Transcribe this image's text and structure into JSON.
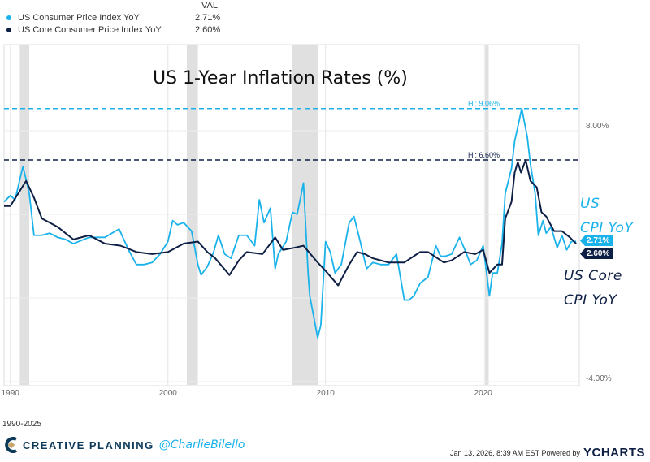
{
  "legend": {
    "header": "VAL",
    "items": [
      {
        "name": "US Consumer Price Index YoY",
        "value": "2.71%",
        "color": "#1ab2ea"
      },
      {
        "name": "US Core Consumer Price Index YoY",
        "value": "2.60%",
        "color": "#0e1f45"
      }
    ]
  },
  "chart_data": {
    "type": "line",
    "title": "US 1-Year Inflation Rates (%)",
    "xlim": [
      1989.6,
      2026.1
    ],
    "ylim": [
      -4,
      10.5
    ],
    "x_ticks": [
      "1990",
      "2000",
      "2010",
      "2020"
    ],
    "y_ticks": [
      "8.00%",
      "-4.00%"
    ],
    "grid": true,
    "recessions": [
      [
        1990.6,
        1991.2
      ],
      [
        2001.2,
        2001.9
      ],
      [
        2007.9,
        2009.5
      ],
      [
        2020.1,
        2020.35
      ]
    ],
    "annotations": [
      {
        "label": "Hi: 9.06%",
        "value": 9.06,
        "color": "#1ab2ea"
      },
      {
        "label": "Hi: 6.60%",
        "value": 6.6,
        "color": "#0e1f45"
      }
    ],
    "end_labels": [
      "2.71%",
      "2.60%"
    ],
    "series": [
      {
        "name": "US Consumer Price Index YoY",
        "callout": [
          "US",
          "CPI YoY"
        ],
        "color": "#1ab2ea",
        "points": [
          [
            1989.6,
            4.6
          ],
          [
            1990,
            4.9
          ],
          [
            1990.3,
            4.7
          ],
          [
            1990.8,
            6.3
          ],
          [
            1991.2,
            5.0
          ],
          [
            1991.5,
            3.0
          ],
          [
            1992,
            3.0
          ],
          [
            1992.5,
            3.1
          ],
          [
            1993,
            2.9
          ],
          [
            1993.5,
            2.8
          ],
          [
            1994,
            2.6
          ],
          [
            1995,
            2.9
          ],
          [
            1996,
            2.9
          ],
          [
            1996.9,
            3.3
          ],
          [
            1997.5,
            2.3
          ],
          [
            1998,
            1.6
          ],
          [
            1998.5,
            1.6
          ],
          [
            1999,
            1.7
          ],
          [
            1999.5,
            2.1
          ],
          [
            2000,
            2.7
          ],
          [
            2000.3,
            3.7
          ],
          [
            2000.6,
            3.5
          ],
          [
            2001,
            3.6
          ],
          [
            2001.5,
            3.2
          ],
          [
            2001.9,
            1.6
          ],
          [
            2002.1,
            1.1
          ],
          [
            2002.5,
            1.5
          ],
          [
            2002.9,
            2.2
          ],
          [
            2003.2,
            3.0
          ],
          [
            2003.6,
            2.1
          ],
          [
            2004,
            1.9
          ],
          [
            2004.5,
            3.0
          ],
          [
            2005,
            3.0
          ],
          [
            2005.5,
            2.5
          ],
          [
            2005.8,
            4.7
          ],
          [
            2006.1,
            3.6
          ],
          [
            2006.5,
            4.3
          ],
          [
            2006.8,
            1.4
          ],
          [
            2007,
            2.1
          ],
          [
            2007.5,
            2.7
          ],
          [
            2007.9,
            4.1
          ],
          [
            2008.2,
            4.0
          ],
          [
            2008.6,
            5.5
          ],
          [
            2008.9,
            1.1
          ],
          [
            2009,
            0.1
          ],
          [
            2009.5,
            -1.9
          ],
          [
            2009.7,
            -1.3
          ],
          [
            2010,
            2.7
          ],
          [
            2010.3,
            2.2
          ],
          [
            2010.6,
            1.2
          ],
          [
            2011,
            1.6
          ],
          [
            2011.5,
            3.6
          ],
          [
            2011.8,
            3.9
          ],
          [
            2012.2,
            2.7
          ],
          [
            2012.6,
            1.4
          ],
          [
            2013,
            1.7
          ],
          [
            2013.5,
            1.6
          ],
          [
            2014,
            1.6
          ],
          [
            2014.5,
            2.1
          ],
          [
            2015,
            -0.1
          ],
          [
            2015.3,
            -0.1
          ],
          [
            2015.6,
            0.1
          ],
          [
            2016,
            0.7
          ],
          [
            2016.5,
            1.0
          ],
          [
            2017,
            2.5
          ],
          [
            2017.3,
            2.0
          ],
          [
            2017.6,
            2.0
          ],
          [
            2018,
            2.1
          ],
          [
            2018.5,
            2.9
          ],
          [
            2018.9,
            2.2
          ],
          [
            2019.2,
            1.6
          ],
          [
            2019.6,
            1.8
          ],
          [
            2020,
            2.5
          ],
          [
            2020.4,
            0.1
          ],
          [
            2020.6,
            1.2
          ],
          [
            2020.9,
            1.2
          ],
          [
            2021.2,
            2.6
          ],
          [
            2021.4,
            5.0
          ],
          [
            2021.8,
            6.2
          ],
          [
            2022,
            7.5
          ],
          [
            2022.45,
            9.06
          ],
          [
            2022.8,
            7.7
          ],
          [
            2023,
            6.4
          ],
          [
            2023.3,
            5.0
          ],
          [
            2023.5,
            3.0
          ],
          [
            2023.8,
            3.7
          ],
          [
            2024,
            3.1
          ],
          [
            2024.3,
            3.4
          ],
          [
            2024.7,
            2.4
          ],
          [
            2025,
            3.0
          ],
          [
            2025.3,
            2.3
          ],
          [
            2025.6,
            2.7
          ],
          [
            2025.9,
            2.71
          ]
        ]
      },
      {
        "name": "US Core Consumer Price Index YoY",
        "callout": [
          "US Core",
          "CPI YoY"
        ],
        "color": "#0e1f45",
        "points": [
          [
            1989.6,
            4.4
          ],
          [
            1990,
            4.4
          ],
          [
            1990.5,
            5.0
          ],
          [
            1991,
            5.6
          ],
          [
            1991.5,
            4.8
          ],
          [
            1992,
            3.8
          ],
          [
            1992.5,
            3.6
          ],
          [
            1993,
            3.4
          ],
          [
            1994,
            2.8
          ],
          [
            1995,
            3.0
          ],
          [
            1996,
            2.6
          ],
          [
            1997,
            2.5
          ],
          [
            1998,
            2.2
          ],
          [
            1999,
            2.1
          ],
          [
            2000,
            2.2
          ],
          [
            2001,
            2.6
          ],
          [
            2001.9,
            2.7
          ],
          [
            2002.5,
            2.2
          ],
          [
            2003,
            1.9
          ],
          [
            2003.9,
            1.1
          ],
          [
            2004.5,
            1.8
          ],
          [
            2005,
            2.2
          ],
          [
            2006,
            2.1
          ],
          [
            2006.8,
            2.9
          ],
          [
            2007.3,
            2.3
          ],
          [
            2008,
            2.4
          ],
          [
            2008.6,
            2.5
          ],
          [
            2009.5,
            1.7
          ],
          [
            2010,
            1.3
          ],
          [
            2010.8,
            0.6
          ],
          [
            2011.5,
            1.6
          ],
          [
            2012,
            2.2
          ],
          [
            2012.5,
            2.1
          ],
          [
            2013,
            1.9
          ],
          [
            2014,
            1.7
          ],
          [
            2015,
            1.7
          ],
          [
            2016,
            2.2
          ],
          [
            2016.5,
            2.2
          ],
          [
            2017.5,
            1.7
          ],
          [
            2018,
            1.8
          ],
          [
            2018.8,
            2.2
          ],
          [
            2019.5,
            2.1
          ],
          [
            2020,
            2.3
          ],
          [
            2020.4,
            1.2
          ],
          [
            2020.9,
            1.6
          ],
          [
            2021.2,
            1.6
          ],
          [
            2021.4,
            3.8
          ],
          [
            2021.8,
            4.6
          ],
          [
            2022,
            6.0
          ],
          [
            2022.2,
            6.5
          ],
          [
            2022.4,
            6.0
          ],
          [
            2022.7,
            6.6
          ],
          [
            2023,
            5.6
          ],
          [
            2023.4,
            5.3
          ],
          [
            2023.7,
            4.1
          ],
          [
            2024,
            3.9
          ],
          [
            2024.5,
            3.2
          ],
          [
            2025,
            3.2
          ],
          [
            2025.5,
            2.9
          ],
          [
            2025.9,
            2.6
          ]
        ]
      }
    ]
  },
  "footer": {
    "range": "1990-2025",
    "brand": "CREATIVE PLANNING",
    "handle": "@CharlieBilello",
    "timestamp": "Jan 13, 2026, 8:39 AM EST Powered by",
    "ycharts": "YCHARTS"
  }
}
